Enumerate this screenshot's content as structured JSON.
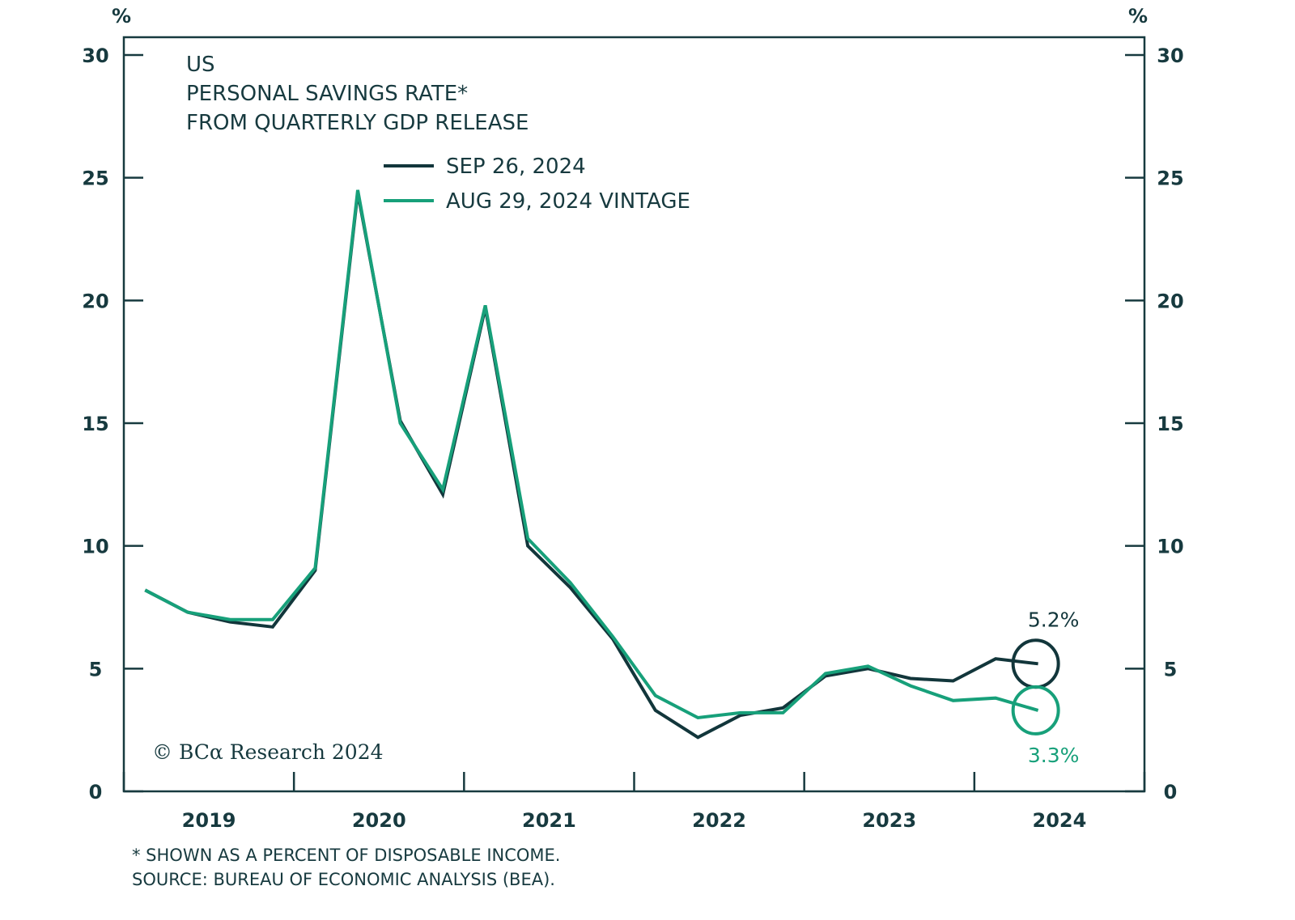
{
  "chart_data": {
    "type": "line",
    "title": [
      "US",
      "PERSONAL SAVINGS RATE*",
      "FROM QUARTERLY GDP RELEASE"
    ],
    "xlabel": "",
    "ylabel_left": "%",
    "ylabel_right": "%",
    "ylim": [
      0,
      30
    ],
    "yticks": [
      0,
      5,
      10,
      15,
      20,
      25,
      30
    ],
    "ytick_labels": [
      "0",
      "5",
      "10",
      "15",
      "20",
      "25",
      "30"
    ],
    "x_year_labels": [
      "2019",
      "2020",
      "2021",
      "2022",
      "2023",
      "2024"
    ],
    "x": [
      "2019Q1",
      "2019Q2",
      "2019Q3",
      "2019Q4",
      "2020Q1",
      "2020Q2",
      "2020Q3",
      "2020Q4",
      "2021Q1",
      "2021Q2",
      "2021Q3",
      "2021Q4",
      "2022Q1",
      "2022Q2",
      "2022Q3",
      "2022Q4",
      "2023Q1",
      "2023Q2",
      "2023Q3",
      "2023Q4",
      "2024Q1",
      "2024Q2"
    ],
    "grid": false,
    "legend_position": "top-center",
    "series": [
      {
        "name": "SEP 26, 2024",
        "color": "#12363b",
        "values": [
          8.2,
          7.3,
          6.9,
          6.7,
          9.0,
          24.4,
          15.1,
          12.1,
          19.7,
          10.0,
          8.3,
          6.2,
          3.3,
          2.2,
          3.1,
          3.4,
          4.7,
          5.0,
          4.6,
          4.5,
          5.4,
          5.2
        ]
      },
      {
        "name": "AUG 29, 2024 VINTAGE",
        "color": "#17a07a",
        "values": [
          8.2,
          7.3,
          7.0,
          7.0,
          9.1,
          24.5,
          15.0,
          12.3,
          19.8,
          10.3,
          8.5,
          6.3,
          3.9,
          3.0,
          3.2,
          3.2,
          4.8,
          5.1,
          4.3,
          3.7,
          3.8,
          3.3
        ]
      }
    ],
    "annotations": [
      {
        "text": "5.2%",
        "series": 0,
        "point": "2024Q2",
        "color": "#12363b",
        "placement": "above"
      },
      {
        "text": "3.3%",
        "series": 1,
        "point": "2024Q2",
        "color": "#17a07a",
        "placement": "below"
      }
    ],
    "footnotes": [
      "* SHOWN AS A PERCENT OF DISPOSABLE INCOME.",
      "SOURCE: BUREAU OF ECONOMIC ANALYSIS (BEA)."
    ],
    "copyright": "© BCα Research 2024"
  }
}
